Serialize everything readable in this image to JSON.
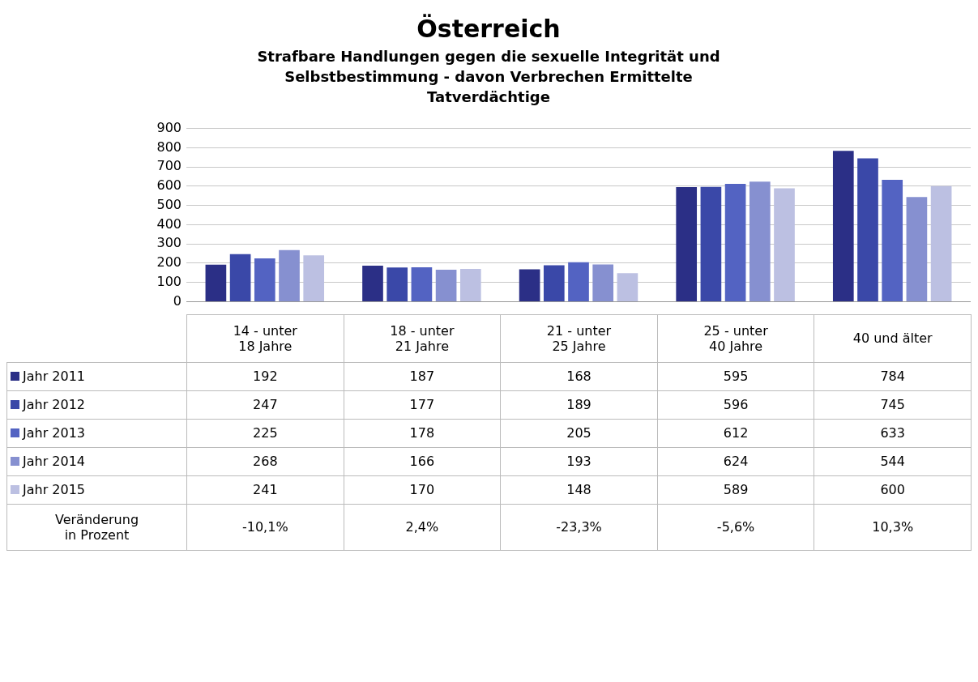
{
  "chart_data": {
    "type": "bar",
    "title": "Österreich",
    "subtitle": "Strafbare Handlungen gegen die sexuelle Integrität und Selbstbestimmung - davon Verbrechen Ermittelte Tatverdächtige",
    "categories": [
      "14 - unter 18 Jahre",
      "18 - unter 21 Jahre",
      "21 - unter 25 Jahre",
      "25 - unter 40 Jahre",
      "40 und älter"
    ],
    "series": [
      {
        "name": "Jahr 2011",
        "color": "#2b2f86",
        "values": [
          192,
          187,
          168,
          595,
          784
        ]
      },
      {
        "name": "Jahr 2012",
        "color": "#3a48a8",
        "values": [
          247,
          177,
          189,
          596,
          745
        ]
      },
      {
        "name": "Jahr 2013",
        "color": "#5363c2",
        "values": [
          225,
          178,
          205,
          612,
          633
        ]
      },
      {
        "name": "Jahr 2014",
        "color": "#8690d0",
        "values": [
          268,
          166,
          193,
          624,
          544
        ]
      },
      {
        "name": "Jahr 2015",
        "color": "#bcc0e2",
        "values": [
          241,
          170,
          148,
          589,
          600
        ]
      }
    ],
    "ylim": [
      0,
      900
    ],
    "yticks": [
      0,
      100,
      200,
      300,
      400,
      500,
      600,
      700,
      800,
      900
    ],
    "grid": "y",
    "legend": "bottom",
    "data_labels": true,
    "annotations": [
      "Veränderung in Prozent",
      "-10,1%",
      "2,4%",
      "-23,3%",
      "-5,6%",
      "10,3%"
    ]
  }
}
